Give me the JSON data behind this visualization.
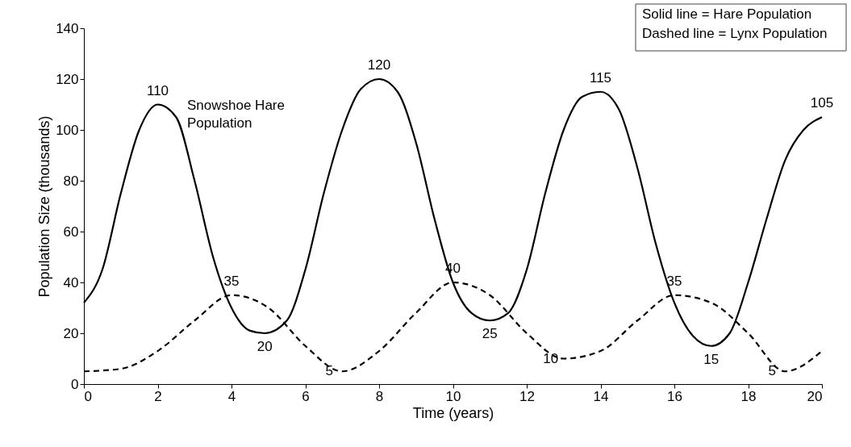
{
  "chart_data": {
    "type": "line",
    "xlabel": "Time (years)",
    "ylabel": "Population Size (thousands)",
    "xlim": [
      0,
      20
    ],
    "xticks": [
      0,
      2,
      4,
      6,
      8,
      10,
      12,
      14,
      16,
      18,
      20
    ],
    "ylim": [
      0,
      140
    ],
    "yticks": [
      0,
      20,
      40,
      60,
      80,
      100,
      120,
      140
    ],
    "grid": false,
    "marker": "none",
    "series": [
      {
        "color": "#000000",
        "line_style": "solid",
        "x": [
          0,
          0.5,
          1,
          1.5,
          2,
          2.5,
          3,
          3.5,
          4,
          4.5,
          4.9,
          5.5,
          6,
          6.5,
          7,
          7.5,
          8,
          8.5,
          9,
          9.5,
          10,
          10.5,
          11,
          11.5,
          12,
          12.5,
          13,
          13.5,
          14,
          14.5,
          15,
          15.5,
          16,
          16.5,
          17,
          17.5,
          18,
          18.5,
          19,
          19.5,
          20
        ],
        "values": [
          32,
          45,
          75,
          100,
          110,
          105,
          80,
          50,
          30,
          21,
          20,
          25,
          45,
          75,
          100,
          116,
          120,
          115,
          95,
          65,
          40,
          28,
          25,
          28,
          45,
          75,
          100,
          113,
          115,
          108,
          85,
          55,
          32,
          19,
          15,
          20,
          40,
          65,
          88,
          100,
          105
        ]
      },
      {
        "color": "#000000",
        "line_style": "dashed",
        "x": [
          0,
          1,
          2,
          3,
          4,
          5,
          6,
          7,
          8,
          9,
          10,
          11,
          12,
          13,
          14,
          15,
          16,
          17,
          18,
          19,
          20
        ],
        "values": [
          5,
          6,
          13,
          25,
          35,
          30,
          15,
          5,
          13,
          28,
          40,
          35,
          20,
          10,
          13,
          25,
          35,
          32,
          20,
          5,
          13
        ]
      }
    ],
    "annotations": [
      "Snowshoe Hare Population",
      "Solid line = Hare Population",
      "Dashed line = Lynx Population",
      {
        "text": "110",
        "x": 2,
        "y": 110
      },
      {
        "text": "20",
        "x": 4.9,
        "y": 20
      },
      {
        "text": "120",
        "x": 8,
        "y": 120
      },
      {
        "text": "25",
        "x": 11,
        "y": 25
      },
      {
        "text": "115",
        "x": 14,
        "y": 115
      },
      {
        "text": "15",
        "x": 17,
        "y": 15
      },
      {
        "text": "105",
        "x": 20,
        "y": 105
      },
      {
        "text": "35",
        "x": 4,
        "y": 35
      },
      {
        "text": "5",
        "x": 7,
        "y": 5
      },
      {
        "text": "40",
        "x": 10,
        "y": 40
      },
      {
        "text": "10",
        "x": 13,
        "y": 10
      },
      {
        "text": "35",
        "x": 16,
        "y": 35
      },
      {
        "text": "5",
        "x": 19,
        "y": 5
      }
    ]
  }
}
